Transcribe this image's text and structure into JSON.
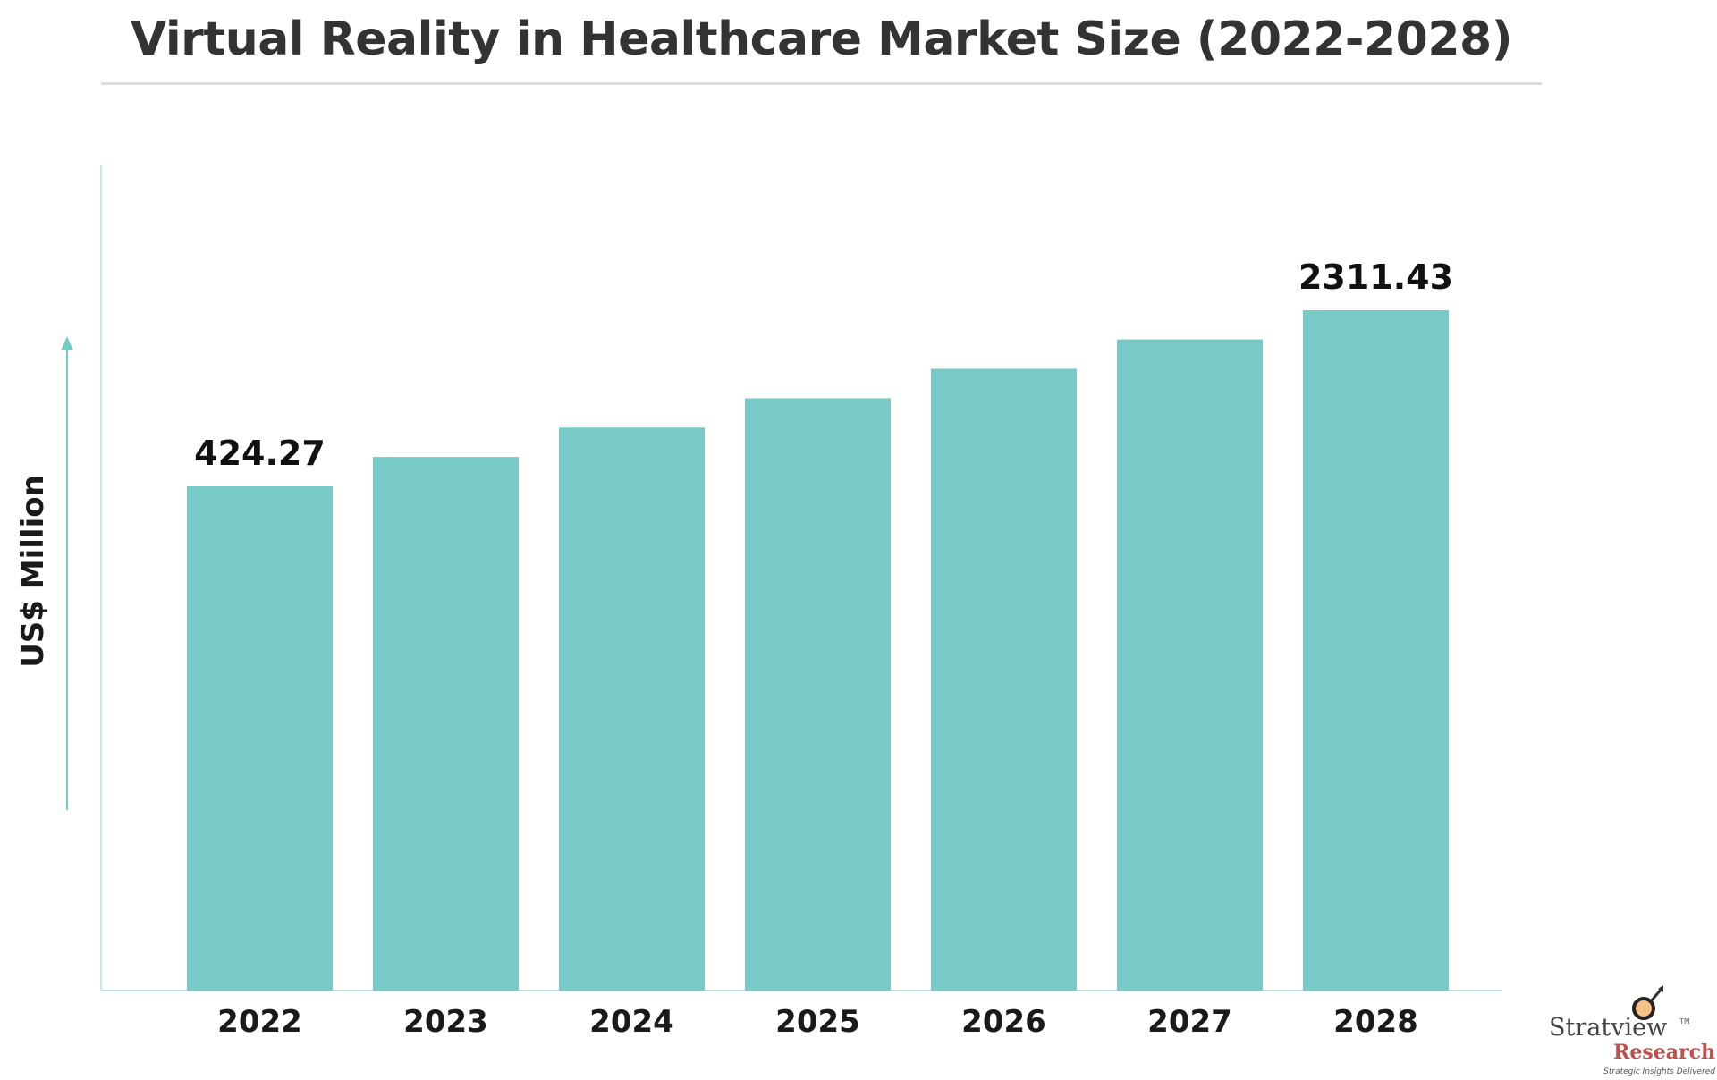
{
  "chart_data": {
    "type": "bar",
    "title": "Virtual Reality in Healthcare Market Size (2022-2028)",
    "xlabel": "",
    "ylabel": "US$ Million",
    "categories": [
      "2022",
      "2023",
      "2024",
      "2025",
      "2026",
      "2027",
      "2028"
    ],
    "values": [
      424.27,
      563,
      747,
      991,
      1316,
      1746,
      2311.43
    ],
    "data_labels": {
      "2022": "424.27",
      "2028": "2311.43"
    },
    "grid": false,
    "legend": "none",
    "bar_color": "#77cac6",
    "axis_color": "#a8dcd9"
  },
  "logo": {
    "name": "Stratview",
    "sub": "Research",
    "tagline": "Strategic Insights Delivered",
    "tm": "TM"
  }
}
